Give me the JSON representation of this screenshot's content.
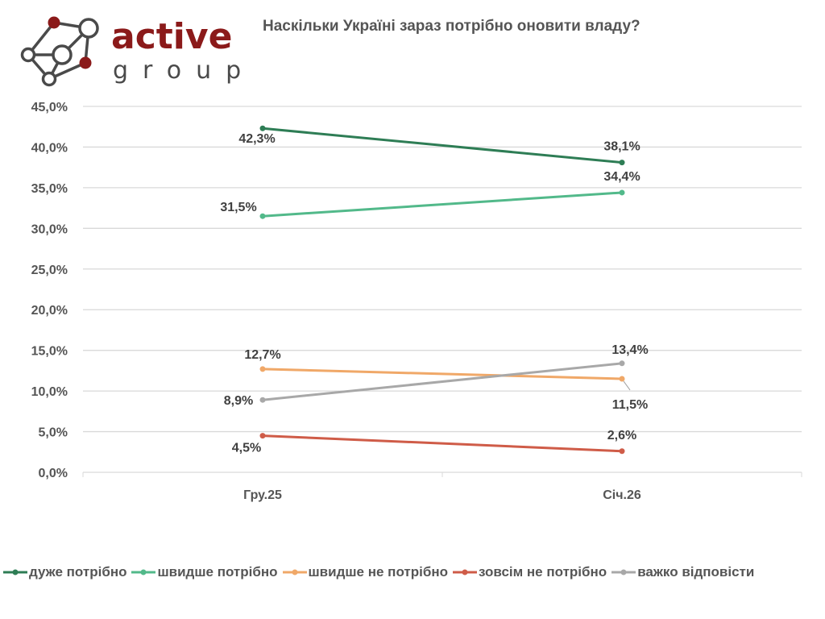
{
  "logo": {
    "brand_word": "active",
    "sub_word": "group",
    "brand_color": "#8b1a1a",
    "sub_color": "#4a4a4a"
  },
  "chart_data": {
    "type": "line",
    "title": "Наскільки Україні зараз потрібно оновити владу?",
    "xlabel": "",
    "ylabel": "",
    "categories": [
      "Гру.25",
      "Січ.26"
    ],
    "ylim": [
      0,
      45
    ],
    "yticks": [
      0,
      5,
      10,
      15,
      20,
      25,
      30,
      35,
      40,
      45
    ],
    "ytick_labels": [
      "0,0%",
      "5,0%",
      "10,0%",
      "15,0%",
      "20,0%",
      "25,0%",
      "30,0%",
      "35,0%",
      "40,0%",
      "45,0%"
    ],
    "grid": true,
    "legend_position": "bottom",
    "series": [
      {
        "name": "дуже потрібно",
        "color": "#2e7d55",
        "values": [
          42.3,
          38.1
        ],
        "labels": [
          "42,3%",
          "38,1%"
        ]
      },
      {
        "name": "швидше потрібно",
        "color": "#52b98a",
        "values": [
          31.5,
          34.4
        ],
        "labels": [
          "31,5%",
          "34,4%"
        ]
      },
      {
        "name": "швидше не потрібно",
        "color": "#f0a868",
        "values": [
          12.7,
          11.5
        ],
        "labels": [
          "12,7%",
          "11,5%"
        ]
      },
      {
        "name": "зовсім не потрібно",
        "color": "#cf5c48",
        "values": [
          4.5,
          2.6
        ],
        "labels": [
          "4,5%",
          "2,6%"
        ]
      },
      {
        "name": "важко відповісти",
        "color": "#a8a8a8",
        "values": [
          8.9,
          13.4
        ],
        "labels": [
          "8,9%",
          "13,4%"
        ]
      }
    ]
  }
}
